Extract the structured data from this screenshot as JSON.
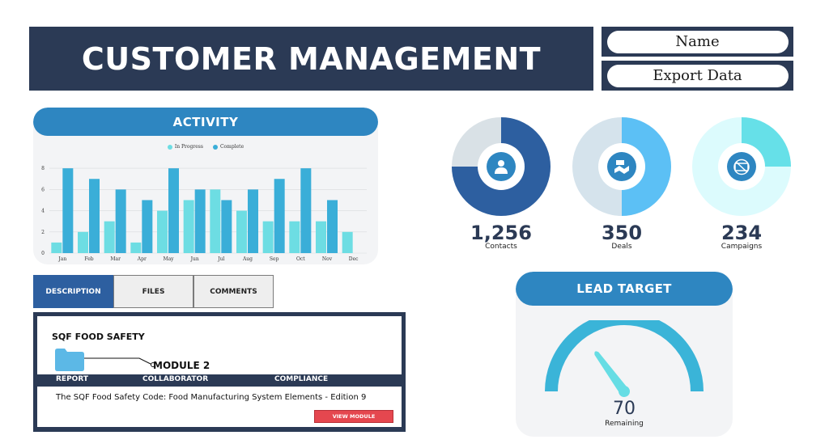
{
  "header": {
    "title": "CUSTOMER MANAGEMENT",
    "name_button": "Name",
    "export_button": "Export Data"
  },
  "activity": {
    "title": "ACTIVITY",
    "legend_in_progress": "In Progress",
    "legend_complete": "Complete"
  },
  "chart_data": {
    "type": "bar",
    "categories": [
      "Jan",
      "Feb",
      "Mar",
      "Apr",
      "May",
      "Jun",
      "Jul",
      "Aug",
      "Sep",
      "Oct",
      "Nov",
      "Dec"
    ],
    "series": [
      {
        "name": "In Progress",
        "values": [
          1,
          2,
          3,
          1,
          4,
          5,
          6,
          4,
          3,
          3,
          3,
          2
        ],
        "color": "#6ddde3"
      },
      {
        "name": "Complete",
        "values": [
          8,
          7,
          6,
          5,
          8,
          6,
          5,
          6,
          7,
          8,
          5,
          null
        ],
        "color": "#3aaed8"
      }
    ],
    "yticks": [
      0,
      2,
      4,
      6,
      8
    ],
    "ylim": [
      0,
      9
    ],
    "legend_position": "top-center",
    "grid": true
  },
  "stats": [
    {
      "value": "1,256",
      "label": "Contacts",
      "fill": 0.75,
      "fg": "#2d5fa0",
      "bg": "#d9e1e6",
      "icon": "person-icon"
    },
    {
      "value": "350",
      "label": "Deals",
      "fill": 0.5,
      "fg": "#5cc0f5",
      "bg": "#d5e3ec",
      "icon": "handshake-icon"
    },
    {
      "value": "234",
      "label": "Campaigns",
      "fill": 0.25,
      "fg": "#66e0e8",
      "bg": "#dcfbfd",
      "icon": "no-cash-icon"
    }
  ],
  "tabs": [
    "DESCRIPTION",
    "FILES",
    "COMMENTS"
  ],
  "module": {
    "title": "SQF FOOD SAFETY",
    "name": "MODULE 2",
    "columns": [
      "REPORT",
      "COLLABORATOR",
      "COMPLIANCE"
    ],
    "description": "The SQF Food Safety Code: Food Manufacturing System Elements - Edition 9",
    "button": "VIEW MODULE"
  },
  "lead_target": {
    "title": "LEAD TARGET",
    "value": "70",
    "label": "Remaining",
    "gauge_fraction": 0.3
  },
  "colors": {
    "navy": "#2b3a55",
    "accent_blue": "#2e86c1",
    "red": "#e5474f"
  }
}
